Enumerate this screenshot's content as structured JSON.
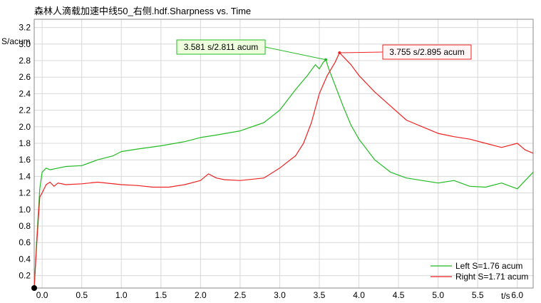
{
  "chart_data": {
    "type": "line",
    "title": "森林人滴载加速中线50_右侧.hdf.Sharpness vs. Time",
    "xlabel": "t/s",
    "ylabel": "S/acum",
    "xlim": [
      -0.1,
      6.2
    ],
    "ylim": [
      0.05,
      3.3
    ],
    "x_ticks": [
      0.0,
      0.5,
      1.0,
      1.5,
      2.0,
      2.5,
      3.0,
      3.5,
      4.0,
      4.5,
      5.0,
      5.5,
      6.0
    ],
    "x_tick_labels": [
      "0.0",
      "0.5",
      "1.0",
      "1.5",
      "2.0",
      "2.5",
      "3.0",
      "3.5",
      "4.0",
      "4.5",
      "5.0",
      "5.5",
      "6.0"
    ],
    "y_ticks": [
      0.2,
      0.4,
      0.6,
      0.8,
      1.0,
      1.2,
      1.4,
      1.6,
      1.8,
      2.0,
      2.2,
      2.4,
      2.6,
      2.8,
      3.0,
      3.2
    ],
    "y_tick_labels": [
      "0.2",
      "0.4",
      "0.6",
      "0.8",
      "1.0",
      "1.2",
      "1.4",
      "1.6",
      "1.8",
      "2.0",
      "2.2",
      "2.4",
      "2.6",
      "2.8",
      "3.0",
      "3.2"
    ],
    "grid": true,
    "legend_position": "bottom-right",
    "origin_point": [
      -0.1,
      0.05
    ],
    "series": [
      {
        "name": "Left S=1.76 acum",
        "color": "#22bb22",
        "x": [
          -0.1,
          -0.07,
          -0.03,
          0.0,
          0.05,
          0.1,
          0.2,
          0.3,
          0.5,
          0.7,
          0.9,
          1.0,
          1.2,
          1.5,
          1.8,
          2.0,
          2.2,
          2.5,
          2.8,
          3.0,
          3.2,
          3.35,
          3.45,
          3.5,
          3.55,
          3.581,
          3.62,
          3.7,
          3.8,
          3.9,
          4.0,
          4.2,
          4.4,
          4.6,
          4.8,
          5.0,
          5.2,
          5.4,
          5.6,
          5.8,
          6.0,
          6.1,
          6.2
        ],
        "y": [
          0.05,
          0.6,
          1.25,
          1.45,
          1.5,
          1.48,
          1.5,
          1.52,
          1.53,
          1.6,
          1.65,
          1.7,
          1.73,
          1.77,
          1.82,
          1.87,
          1.9,
          1.95,
          2.05,
          2.2,
          2.45,
          2.62,
          2.75,
          2.7,
          2.78,
          2.811,
          2.7,
          2.5,
          2.25,
          2.02,
          1.85,
          1.6,
          1.45,
          1.38,
          1.35,
          1.32,
          1.35,
          1.28,
          1.27,
          1.32,
          1.25,
          1.35,
          1.45
        ]
      },
      {
        "name": "Right S=1.71 acum",
        "color": "#ee2222",
        "x": [
          -0.1,
          -0.07,
          -0.03,
          0.0,
          0.05,
          0.1,
          0.15,
          0.2,
          0.3,
          0.5,
          0.7,
          1.0,
          1.2,
          1.4,
          1.6,
          1.8,
          2.0,
          2.1,
          2.2,
          2.3,
          2.5,
          2.8,
          3.0,
          3.2,
          3.3,
          3.4,
          3.5,
          3.6,
          3.7,
          3.755,
          3.8,
          3.9,
          4.0,
          4.2,
          4.4,
          4.6,
          4.8,
          5.0,
          5.2,
          5.4,
          5.6,
          5.8,
          6.0,
          6.1,
          6.2
        ],
        "y": [
          0.05,
          0.55,
          1.15,
          1.2,
          1.3,
          1.33,
          1.28,
          1.32,
          1.3,
          1.31,
          1.33,
          1.3,
          1.29,
          1.27,
          1.27,
          1.3,
          1.35,
          1.43,
          1.38,
          1.36,
          1.35,
          1.38,
          1.5,
          1.65,
          1.8,
          2.05,
          2.4,
          2.62,
          2.78,
          2.895,
          2.85,
          2.75,
          2.62,
          2.42,
          2.25,
          2.08,
          2.0,
          1.92,
          1.88,
          1.85,
          1.8,
          1.75,
          1.8,
          1.72,
          1.68
        ]
      }
    ],
    "annotations": [
      {
        "text": "3.581 s/2.811 acum",
        "x": 3.581,
        "y": 2.811,
        "color": "#22bb22",
        "fill": "#eeffdd",
        "placement": "left"
      },
      {
        "text": "3.755 s/2.895 acum",
        "x": 3.755,
        "y": 2.895,
        "color": "#ee2222",
        "fill": "#fff5f5",
        "placement": "right"
      }
    ]
  }
}
